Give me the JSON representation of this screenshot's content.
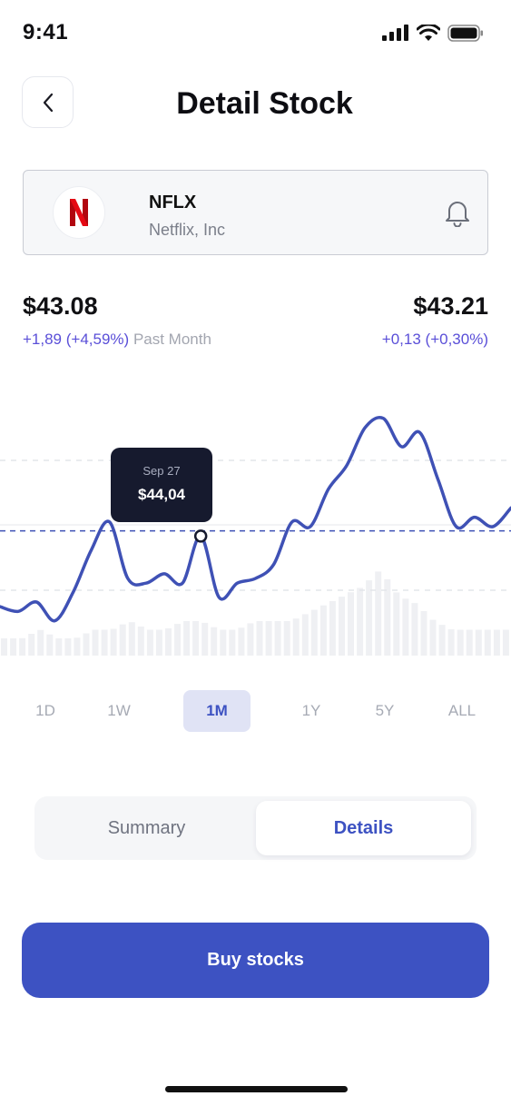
{
  "status_bar": {
    "time": "9:41"
  },
  "header": {
    "title": "Detail Stock"
  },
  "stock": {
    "ticker": "NFLX",
    "company": "Netflix, Inc",
    "logo_letter": "N",
    "brand_color": "#e50914"
  },
  "prices": {
    "left_price": "$43.08",
    "left_change": "+1,89 (+4,59%)",
    "left_period": "Past Month",
    "right_price": "$43.21",
    "right_change": "+0,13 (+0,30%)"
  },
  "tooltip": {
    "date": "Sep 27",
    "value": "$44,04"
  },
  "chart_data": {
    "type": "line",
    "line_color": "#3f51b5",
    "values": [
      41.6,
      41.5,
      41.7,
      41.3,
      41.9,
      42.8,
      43.4,
      42.2,
      42.1,
      42.3,
      42.1,
      43.1,
      41.8,
      42.1,
      42.2,
      42.5,
      43.4,
      43.3,
      44.1,
      44.6,
      45.4,
      45.6,
      45.0,
      45.3,
      44.3,
      43.3,
      43.5,
      43.3,
      43.7
    ],
    "volume": [
      2,
      2,
      3,
      2,
      2,
      3,
      3,
      4,
      3,
      3,
      4,
      4,
      3,
      3,
      4,
      4,
      4,
      5,
      6,
      7,
      8,
      10,
      7,
      6,
      4,
      3,
      3,
      3,
      3
    ],
    "reference_value": 43.21,
    "grid": true
  },
  "ranges": {
    "items": [
      {
        "label": "1D"
      },
      {
        "label": "1W"
      },
      {
        "label": "1M"
      },
      {
        "label": "1Y"
      },
      {
        "label": "5Y"
      },
      {
        "label": "ALL"
      }
    ],
    "active": "1M"
  },
  "segments": {
    "summary": "Summary",
    "details": "Details"
  },
  "buy_button": {
    "label": "Buy stocks"
  },
  "icons": {
    "back": "chevron-left-icon",
    "bell": "bell-icon",
    "signal": "signal-icon",
    "wifi": "wifi-icon",
    "battery": "battery-icon"
  }
}
